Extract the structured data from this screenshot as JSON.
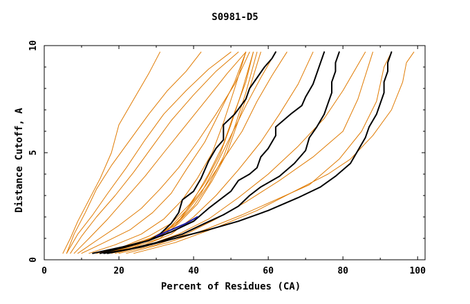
{
  "chart_data": {
    "type": "line",
    "title": "S0981-D5",
    "xlabel": "Percent of Residues (CA)",
    "ylabel": "Distance Cutoff, A",
    "xlim": [
      0,
      102
    ],
    "ylim": [
      0,
      10
    ],
    "xticks": [
      0,
      20,
      40,
      60,
      80,
      100
    ],
    "yticks": [
      0,
      5,
      10
    ],
    "grid": false,
    "colors": {
      "other": "#e07a00",
      "highlight": "#000000",
      "accent": "#1a1aa6"
    },
    "series": [
      {
        "name": "orange-1",
        "color": "#e07a00",
        "points": [
          [
            5,
            0.3
          ],
          [
            7,
            1.0
          ],
          [
            9,
            1.8
          ],
          [
            12,
            2.8
          ],
          [
            15,
            3.8
          ],
          [
            18,
            5.0
          ],
          [
            20,
            6.3
          ],
          [
            24,
            7.5
          ],
          [
            28,
            8.7
          ],
          [
            31,
            9.7
          ]
        ]
      },
      {
        "name": "orange-2",
        "color": "#e07a00",
        "points": [
          [
            6,
            0.3
          ],
          [
            8,
            1.2
          ],
          [
            11,
            2.2
          ],
          [
            14,
            3.3
          ],
          [
            18,
            4.4
          ],
          [
            23,
            5.6
          ],
          [
            28,
            6.8
          ],
          [
            33,
            7.9
          ],
          [
            38,
            8.8
          ],
          [
            42,
            9.7
          ]
        ]
      },
      {
        "name": "orange-3",
        "color": "#e07a00",
        "points": [
          [
            6,
            0.3
          ],
          [
            9,
            1.2
          ],
          [
            13,
            2.1
          ],
          [
            17,
            3.1
          ],
          [
            22,
            4.3
          ],
          [
            27,
            5.6
          ],
          [
            32,
            6.8
          ],
          [
            38,
            7.9
          ],
          [
            44,
            8.9
          ],
          [
            50,
            9.7
          ]
        ]
      },
      {
        "name": "orange-4",
        "color": "#e07a00",
        "points": [
          [
            7,
            0.3
          ],
          [
            10,
            1.1
          ],
          [
            14,
            2.0
          ],
          [
            19,
            3.0
          ],
          [
            24,
            4.1
          ],
          [
            29,
            5.3
          ],
          [
            34,
            6.5
          ],
          [
            40,
            7.7
          ],
          [
            46,
            8.8
          ],
          [
            52,
            9.7
          ]
        ]
      },
      {
        "name": "orange-5",
        "color": "#e07a00",
        "points": [
          [
            8,
            0.3
          ],
          [
            12,
            1.0
          ],
          [
            17,
            1.9
          ],
          [
            22,
            2.9
          ],
          [
            27,
            3.9
          ],
          [
            32,
            5.0
          ],
          [
            38,
            6.3
          ],
          [
            44,
            7.6
          ],
          [
            49,
            8.7
          ],
          [
            54,
            9.7
          ]
        ]
      },
      {
        "name": "orange-6",
        "color": "#e07a00",
        "points": [
          [
            9,
            0.3
          ],
          [
            14,
            0.9
          ],
          [
            20,
            1.6
          ],
          [
            26,
            2.4
          ],
          [
            31,
            3.3
          ],
          [
            36,
            4.3
          ],
          [
            41,
            5.5
          ],
          [
            46,
            6.8
          ],
          [
            51,
            8.2
          ],
          [
            55,
            9.7
          ]
        ]
      },
      {
        "name": "orange-7",
        "color": "#e07a00",
        "points": [
          [
            10,
            0.3
          ],
          [
            16,
            0.8
          ],
          [
            23,
            1.4
          ],
          [
            29,
            2.2
          ],
          [
            34,
            3.1
          ],
          [
            38,
            4.2
          ],
          [
            43,
            5.5
          ],
          [
            47,
            6.9
          ],
          [
            51,
            8.3
          ],
          [
            54,
            9.7
          ]
        ]
      },
      {
        "name": "orange-8",
        "color": "#e07a00",
        "points": [
          [
            12,
            0.3
          ],
          [
            19,
            0.7
          ],
          [
            26,
            1.2
          ],
          [
            32,
            1.9
          ],
          [
            37,
            2.8
          ],
          [
            41,
            3.8
          ],
          [
            45,
            5.0
          ],
          [
            48,
            6.4
          ],
          [
            51,
            8.0
          ],
          [
            54,
            9.7
          ]
        ]
      },
      {
        "name": "orange-9",
        "color": "#e07a00",
        "points": [
          [
            13,
            0.3
          ],
          [
            21,
            0.6
          ],
          [
            28,
            1.1
          ],
          [
            34,
            1.7
          ],
          [
            39,
            2.6
          ],
          [
            43,
            3.6
          ],
          [
            47,
            4.9
          ],
          [
            50,
            6.3
          ],
          [
            53,
            7.9
          ],
          [
            56,
            9.7
          ]
        ]
      },
      {
        "name": "orange-10",
        "color": "#e07a00",
        "points": [
          [
            14,
            0.3
          ],
          [
            22,
            0.6
          ],
          [
            29,
            1.0
          ],
          [
            35,
            1.6
          ],
          [
            40,
            2.5
          ],
          [
            44,
            3.5
          ],
          [
            48,
            4.8
          ],
          [
            51,
            6.2
          ],
          [
            54,
            7.8
          ],
          [
            57,
            9.7
          ]
        ]
      },
      {
        "name": "orange-11",
        "color": "#e07a00",
        "points": [
          [
            15,
            0.3
          ],
          [
            23,
            0.7
          ],
          [
            30,
            1.1
          ],
          [
            36,
            1.8
          ],
          [
            40,
            2.8
          ],
          [
            44,
            4.0
          ],
          [
            48,
            5.4
          ],
          [
            51,
            6.9
          ],
          [
            54,
            8.3
          ],
          [
            56,
            9.7
          ]
        ]
      },
      {
        "name": "orange-12",
        "color": "#e07a00",
        "points": [
          [
            16,
            0.3
          ],
          [
            24,
            0.6
          ],
          [
            31,
            1.0
          ],
          [
            36,
            1.7
          ],
          [
            41,
            2.6
          ],
          [
            45,
            3.7
          ],
          [
            49,
            5.0
          ],
          [
            52,
            6.5
          ],
          [
            55,
            8.0
          ],
          [
            58,
            9.7
          ]
        ]
      },
      {
        "name": "orange-13",
        "color": "#e07a00",
        "points": [
          [
            16,
            0.3
          ],
          [
            25,
            0.7
          ],
          [
            32,
            1.2
          ],
          [
            37,
            2.0
          ],
          [
            42,
            3.1
          ],
          [
            46,
            4.4
          ],
          [
            50,
            5.8
          ],
          [
            54,
            7.2
          ],
          [
            58,
            8.5
          ],
          [
            62,
            9.7
          ]
        ]
      },
      {
        "name": "orange-14",
        "color": "#e07a00",
        "points": [
          [
            17,
            0.3
          ],
          [
            26,
            0.8
          ],
          [
            33,
            1.4
          ],
          [
            38,
            2.3
          ],
          [
            43,
            3.4
          ],
          [
            48,
            4.7
          ],
          [
            53,
            6.0
          ],
          [
            57,
            7.4
          ],
          [
            61,
            8.6
          ],
          [
            65,
            9.7
          ]
        ]
      },
      {
        "name": "orange-15",
        "color": "#e07a00",
        "points": [
          [
            18,
            0.3
          ],
          [
            27,
            0.7
          ],
          [
            34,
            1.2
          ],
          [
            40,
            2.0
          ],
          [
            46,
            3.0
          ],
          [
            52,
            4.2
          ],
          [
            58,
            5.5
          ],
          [
            63,
            6.8
          ],
          [
            68,
            8.2
          ],
          [
            72,
            9.7
          ]
        ]
      },
      {
        "name": "orange-16",
        "color": "#e07a00",
        "points": [
          [
            19,
            0.3
          ],
          [
            28,
            0.7
          ],
          [
            36,
            1.2
          ],
          [
            44,
            1.9
          ],
          [
            52,
            2.9
          ],
          [
            60,
            4.0
          ],
          [
            68,
            5.3
          ],
          [
            75,
            6.6
          ],
          [
            80,
            7.9
          ],
          [
            86,
            9.7
          ]
        ]
      },
      {
        "name": "orange-17",
        "color": "#e07a00",
        "points": [
          [
            20,
            0.3
          ],
          [
            30,
            0.7
          ],
          [
            38,
            1.2
          ],
          [
            46,
            1.9
          ],
          [
            54,
            2.7
          ],
          [
            63,
            3.7
          ],
          [
            72,
            4.8
          ],
          [
            80,
            6.0
          ],
          [
            84,
            7.5
          ],
          [
            88,
            9.7
          ]
        ]
      },
      {
        "name": "orange-18",
        "color": "#e07a00",
        "points": [
          [
            22,
            0.3
          ],
          [
            33,
            0.8
          ],
          [
            43,
            1.4
          ],
          [
            53,
            2.1
          ],
          [
            62,
            2.8
          ],
          [
            71,
            3.5
          ],
          [
            79,
            4.7
          ],
          [
            85,
            6.0
          ],
          [
            89,
            7.4
          ],
          [
            91,
            9.0
          ],
          [
            93,
            9.7
          ]
        ]
      },
      {
        "name": "orange-19",
        "color": "#e07a00",
        "points": [
          [
            24,
            0.3
          ],
          [
            35,
            0.8
          ],
          [
            46,
            1.5
          ],
          [
            57,
            2.3
          ],
          [
            67,
            3.2
          ],
          [
            76,
            4.0
          ],
          [
            82,
            4.7
          ],
          [
            88,
            5.8
          ],
          [
            93,
            7.0
          ],
          [
            96,
            8.3
          ],
          [
            97,
            9.2
          ],
          [
            99,
            9.7
          ]
        ]
      },
      {
        "name": "black-1",
        "color": "#000000",
        "points": [
          [
            13,
            0.3
          ],
          [
            21,
            0.6
          ],
          [
            28,
            0.9
          ],
          [
            31,
            1.2
          ],
          [
            34,
            1.7
          ],
          [
            36,
            2.2
          ],
          [
            37,
            2.8
          ],
          [
            40,
            3.2
          ],
          [
            42,
            3.8
          ],
          [
            44,
            4.6
          ],
          [
            46,
            5.2
          ],
          [
            48,
            5.6
          ],
          [
            48,
            6.3
          ],
          [
            51,
            6.8
          ],
          [
            54,
            7.5
          ],
          [
            55,
            8.0
          ],
          [
            57,
            8.5
          ],
          [
            59,
            9.0
          ],
          [
            61,
            9.4
          ],
          [
            62,
            9.7
          ]
        ]
      },
      {
        "name": "black-2",
        "color": "#000000",
        "points": [
          [
            15,
            0.3
          ],
          [
            22,
            0.6
          ],
          [
            28,
            0.9
          ],
          [
            34,
            1.3
          ],
          [
            40,
            1.8
          ],
          [
            44,
            2.4
          ],
          [
            47,
            2.8
          ],
          [
            50,
            3.2
          ],
          [
            52,
            3.7
          ],
          [
            55,
            4.0
          ],
          [
            57,
            4.3
          ],
          [
            58,
            4.8
          ],
          [
            60,
            5.2
          ],
          [
            62,
            5.8
          ],
          [
            62,
            6.2
          ],
          [
            64,
            6.5
          ],
          [
            66,
            6.8
          ],
          [
            69,
            7.2
          ],
          [
            70,
            7.6
          ],
          [
            72,
            8.2
          ],
          [
            73,
            8.7
          ],
          [
            74,
            9.2
          ],
          [
            75,
            9.7
          ]
        ]
      },
      {
        "name": "black-3",
        "color": "#000000",
        "points": [
          [
            16,
            0.3
          ],
          [
            23,
            0.5
          ],
          [
            30,
            0.8
          ],
          [
            37,
            1.2
          ],
          [
            43,
            1.7
          ],
          [
            48,
            2.1
          ],
          [
            52,
            2.5
          ],
          [
            55,
            3.0
          ],
          [
            58,
            3.4
          ],
          [
            63,
            3.9
          ],
          [
            67,
            4.5
          ],
          [
            70,
            5.1
          ],
          [
            71,
            5.7
          ],
          [
            73,
            6.2
          ],
          [
            75,
            6.8
          ],
          [
            76,
            7.3
          ],
          [
            77,
            7.8
          ],
          [
            77,
            8.3
          ],
          [
            78,
            8.8
          ],
          [
            78,
            9.2
          ],
          [
            79,
            9.7
          ]
        ]
      },
      {
        "name": "black-4",
        "color": "#000000",
        "points": [
          [
            17,
            0.3
          ],
          [
            26,
            0.6
          ],
          [
            35,
            1.0
          ],
          [
            44,
            1.4
          ],
          [
            52,
            1.8
          ],
          [
            60,
            2.3
          ],
          [
            68,
            2.9
          ],
          [
            74,
            3.4
          ],
          [
            78,
            3.9
          ],
          [
            82,
            4.5
          ],
          [
            84,
            5.1
          ],
          [
            86,
            5.7
          ],
          [
            87,
            6.2
          ],
          [
            89,
            6.8
          ],
          [
            90,
            7.3
          ],
          [
            91,
            7.8
          ],
          [
            91,
            8.3
          ],
          [
            92,
            8.8
          ],
          [
            92,
            9.2
          ],
          [
            93,
            9.7
          ]
        ]
      },
      {
        "name": "blue-1",
        "color": "#1a1aa6",
        "points": [
          [
            30,
            1.1
          ],
          [
            34,
            1.4
          ],
          [
            38,
            1.7
          ],
          [
            41,
            2.0
          ]
        ]
      }
    ]
  }
}
